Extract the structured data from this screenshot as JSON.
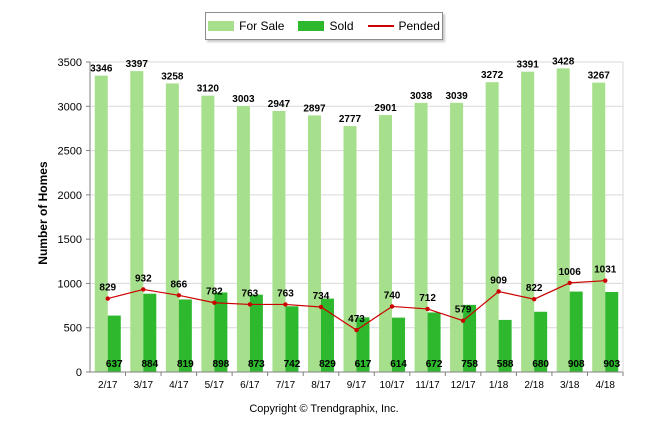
{
  "chart_data": {
    "type": "bar",
    "ylabel": "Number of Homes",
    "xlabel": "",
    "ylim": [
      0,
      3500
    ],
    "yticks": [
      0,
      500,
      1000,
      1500,
      2000,
      2500,
      3000,
      3500
    ],
    "grid": true,
    "legend_position": "top-center",
    "categories": [
      "2/17",
      "3/17",
      "4/17",
      "5/17",
      "6/17",
      "7/17",
      "8/17",
      "9/17",
      "10/17",
      "11/17",
      "12/17",
      "1/18",
      "2/18",
      "3/18",
      "4/18"
    ],
    "series": [
      {
        "name": "For Sale",
        "type": "bar",
        "color": "#a6e08c",
        "values": [
          3346,
          3397,
          3258,
          3120,
          3003,
          2947,
          2897,
          2777,
          2901,
          3038,
          3039,
          3272,
          3391,
          3428,
          3267
        ]
      },
      {
        "name": "Sold",
        "type": "bar",
        "color": "#2db82d",
        "values": [
          637,
          884,
          819,
          898,
          873,
          742,
          829,
          617,
          614,
          672,
          758,
          588,
          680,
          908,
          903
        ]
      },
      {
        "name": "Pended",
        "type": "line",
        "color": "#cc0000",
        "values": [
          829,
          932,
          866,
          782,
          763,
          763,
          734,
          473,
          740,
          712,
          579,
          909,
          822,
          1006,
          1031
        ]
      }
    ]
  },
  "footer": {
    "copyright": "Copyright © Trendgraphix, Inc."
  }
}
